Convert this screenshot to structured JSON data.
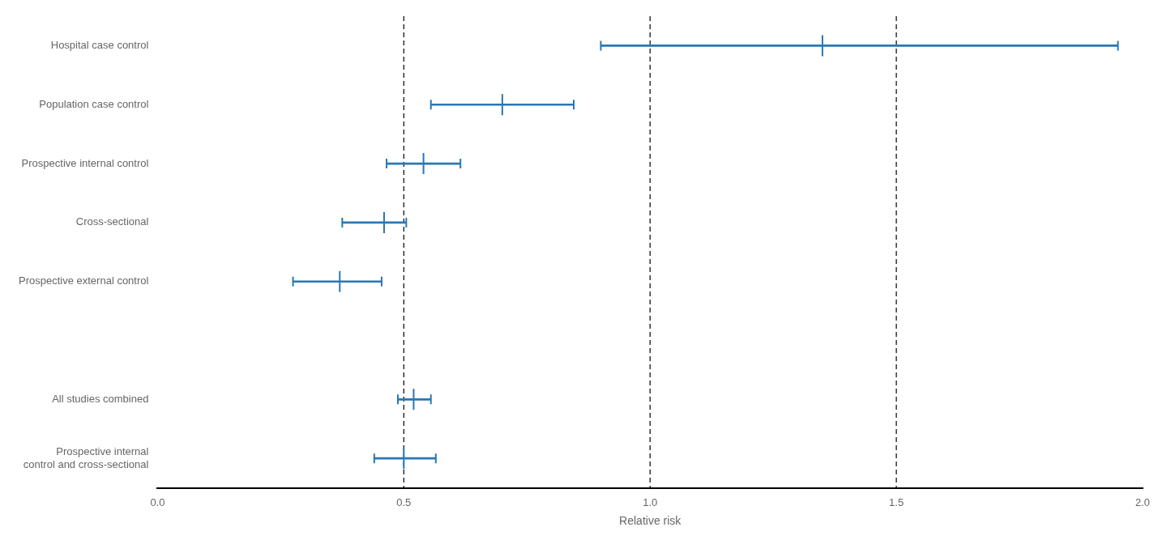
{
  "chart_data": {
    "type": "forest",
    "categories": [
      "Hospital case control",
      "Population case control",
      "Prospective internal control",
      "Cross-sectional",
      "Prospective external control",
      null,
      "All studies combined",
      "Prospective internal\ncontrol and cross-sectional"
    ],
    "values": [
      1.35,
      0.7,
      0.54,
      0.46,
      0.37,
      null,
      0.52,
      0.5
    ],
    "ci_low": [
      0.9,
      0.555,
      0.465,
      0.375,
      0.275,
      null,
      0.488,
      0.44
    ],
    "ci_high": [
      1.95,
      0.845,
      0.615,
      0.505,
      0.455,
      null,
      0.555,
      0.565
    ],
    "vlines": [
      0.5,
      1.0,
      1.5
    ],
    "xlabel": "Relative risk",
    "color": "#2878b5",
    "xlim": [
      0.0,
      2.0
    ],
    "xticks": [
      {
        "value": 0.0,
        "label": "0.0"
      },
      {
        "value": 0.5,
        "label": "0.5"
      },
      {
        "value": 1.0,
        "label": "1.0"
      },
      {
        "value": 1.5,
        "label": "1.5"
      },
      {
        "value": 2.0,
        "label": "2.0"
      }
    ],
    "grid": false
  }
}
